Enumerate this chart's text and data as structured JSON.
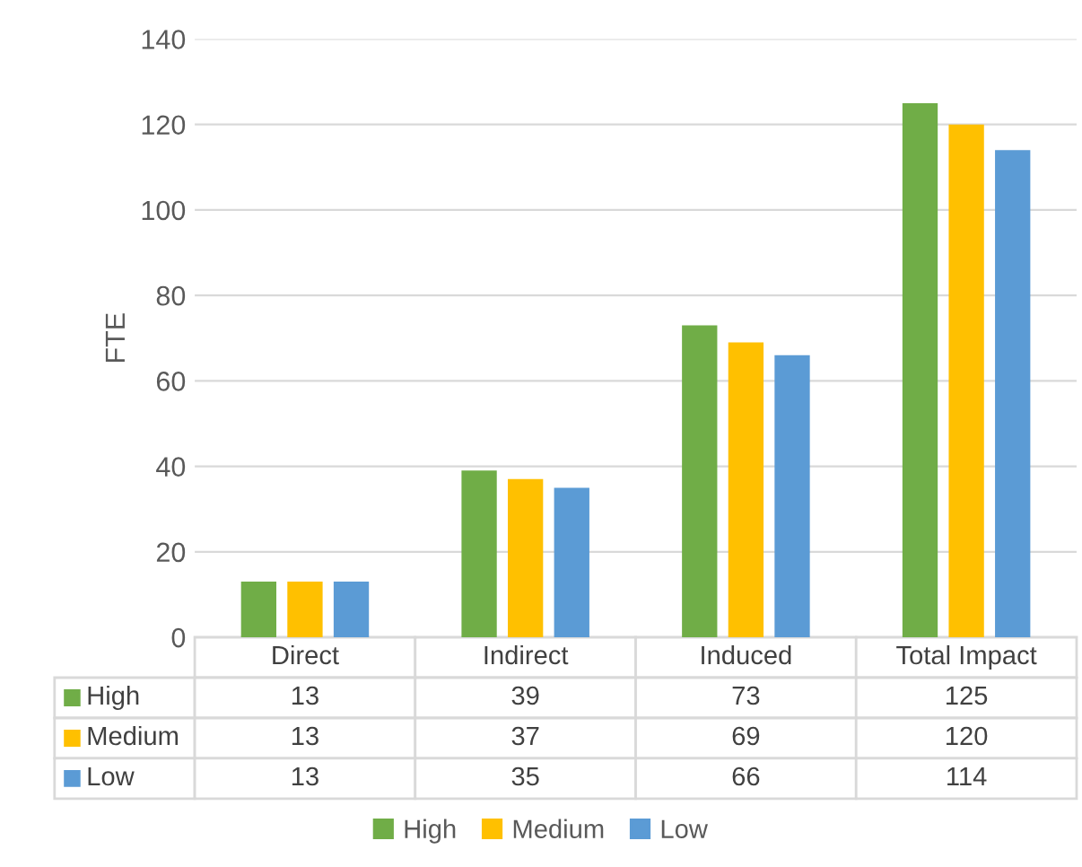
{
  "chart_data": {
    "type": "bar",
    "ylabel": "FTE",
    "categories": [
      "Direct",
      "Indirect",
      "Induced",
      "Total Impact"
    ],
    "series": [
      {
        "name": "High",
        "color": "#70ad47",
        "values": [
          13,
          39,
          73,
          125
        ]
      },
      {
        "name": "Medium",
        "color": "#ffc000",
        "values": [
          13,
          37,
          69,
          120
        ]
      },
      {
        "name": "Low",
        "color": "#5b9bd5",
        "values": [
          13,
          35,
          66,
          114
        ]
      }
    ],
    "ylim": [
      0,
      140
    ],
    "yticks": [
      0,
      20,
      40,
      60,
      80,
      100,
      120,
      140
    ],
    "grid": "y",
    "legend": "bottom",
    "data_labels": true
  }
}
